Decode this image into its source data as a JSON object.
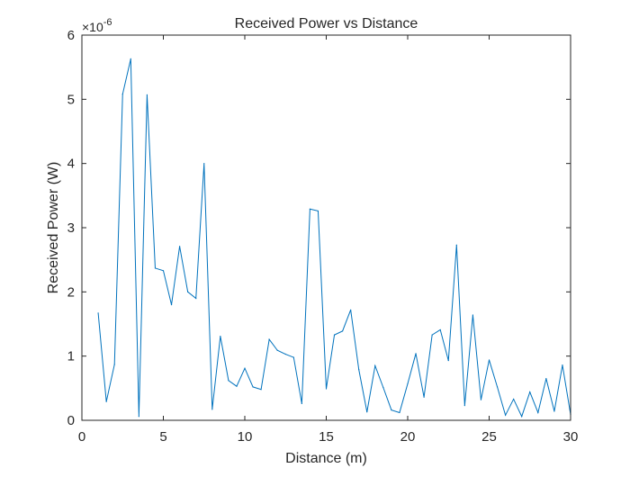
{
  "chart_data": {
    "type": "line",
    "title": "Received Power vs Distance",
    "xlabel": "Distance (m)",
    "ylabel": "Received Power (W)",
    "y_exponent_label": {
      "base": "×10",
      "exponent": "-6"
    },
    "xlim": [
      0,
      30
    ],
    "ylim": [
      0,
      6
    ],
    "xticks": [
      0,
      5,
      10,
      15,
      20,
      25,
      30
    ],
    "yticks": [
      0,
      1,
      2,
      3,
      4,
      5,
      6
    ],
    "grid": false,
    "legend": "none",
    "series": [
      {
        "color": "#0072BD",
        "x": [
          1,
          1.5,
          2,
          2.5,
          3,
          3.5,
          4,
          4.5,
          5,
          5.5,
          6,
          6.5,
          7,
          7.5,
          8,
          8.5,
          9,
          9.5,
          10,
          10.5,
          11,
          11.5,
          12,
          12.5,
          13,
          13.5,
          14,
          14.5,
          15,
          15.5,
          16,
          16.5,
          17,
          17.5,
          18,
          18.5,
          19,
          19.5,
          20,
          20.5,
          21,
          21.5,
          22,
          22.5,
          23,
          23.5,
          24,
          24.5,
          25,
          25.5,
          26,
          26.5,
          27,
          27.5,
          28,
          28.5,
          29,
          29.5,
          30
        ],
        "y": [
          1.67,
          0.29,
          0.87,
          5.08,
          5.63,
          0.06,
          5.07,
          2.37,
          2.33,
          1.8,
          2.71,
          2.0,
          1.9,
          4.0,
          0.17,
          1.31,
          0.62,
          0.53,
          0.81,
          0.52,
          0.48,
          1.26,
          1.09,
          1.03,
          0.98,
          0.26,
          3.29,
          3.26,
          0.49,
          1.33,
          1.39,
          1.72,
          0.79,
          0.13,
          0.85,
          0.51,
          0.16,
          0.12,
          0.57,
          1.04,
          0.36,
          1.33,
          1.41,
          0.93,
          2.73,
          0.23,
          1.64,
          0.32,
          0.94,
          0.52,
          0.08,
          0.33,
          0.06,
          0.44,
          0.12,
          0.65,
          0.14,
          0.86,
          0.09
        ]
      }
    ]
  }
}
